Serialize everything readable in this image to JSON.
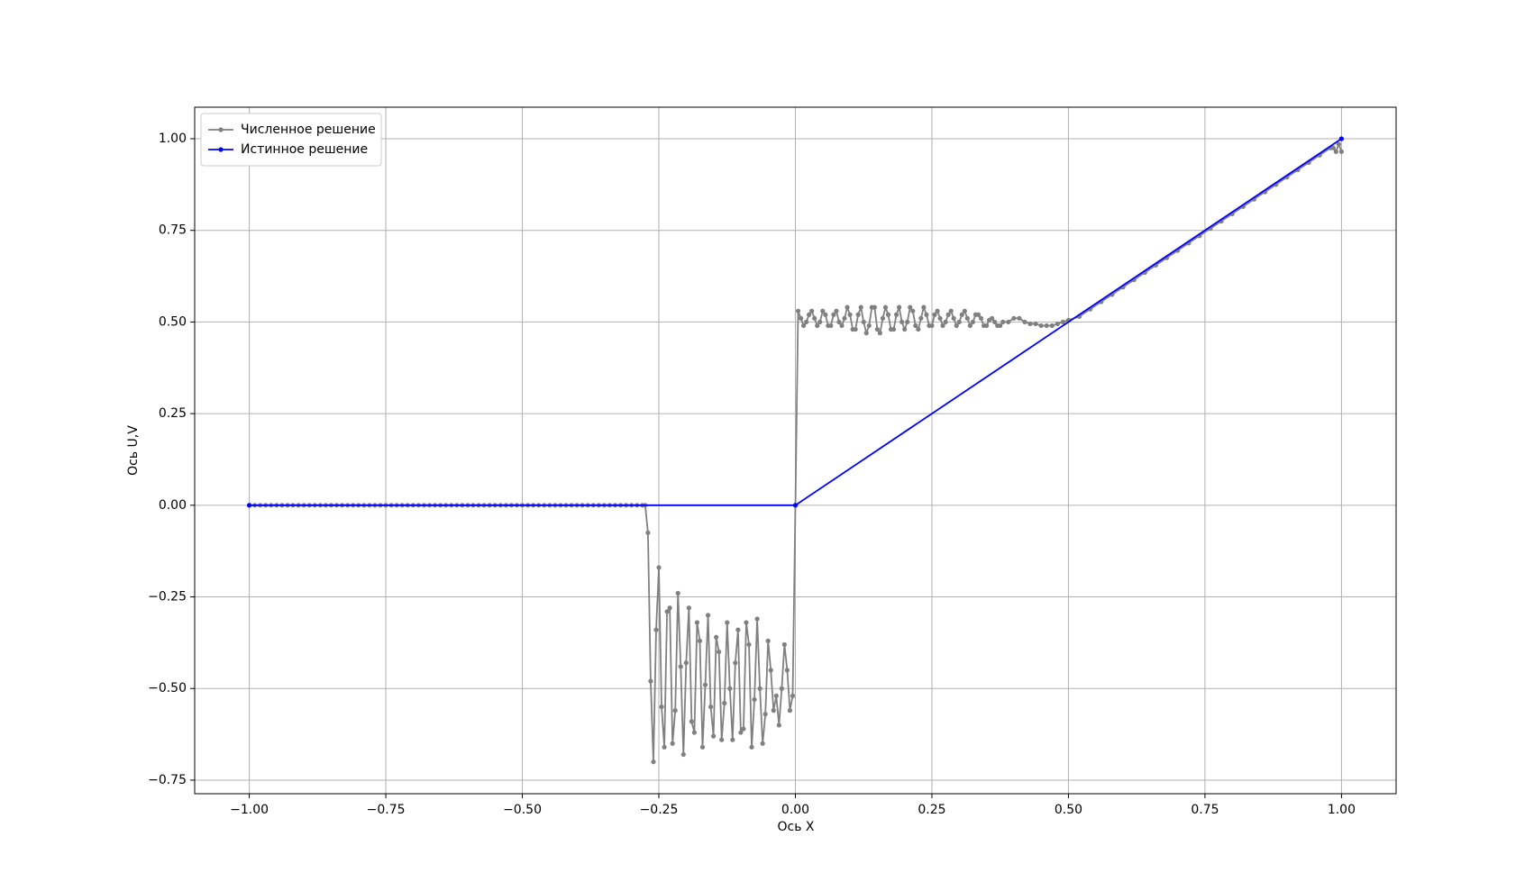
{
  "chart_data": {
    "type": "line",
    "xlabel": "Ось X",
    "ylabel": "Ось U,V",
    "xlim": [
      -1.1,
      1.1
    ],
    "ylim": [
      -0.787,
      1.086
    ],
    "xticks": [
      {
        "value": -1.0,
        "label": "−1.00"
      },
      {
        "value": -0.75,
        "label": "−0.75"
      },
      {
        "value": -0.5,
        "label": "−0.50"
      },
      {
        "value": -0.25,
        "label": "−0.25"
      },
      {
        "value": 0.0,
        "label": "0.00"
      },
      {
        "value": 0.25,
        "label": "0.25"
      },
      {
        "value": 0.5,
        "label": "0.50"
      },
      {
        "value": 0.75,
        "label": "0.75"
      },
      {
        "value": 1.0,
        "label": "1.00"
      }
    ],
    "yticks": [
      {
        "value": -0.75,
        "label": "−0.75"
      },
      {
        "value": -0.5,
        "label": "−0.50"
      },
      {
        "value": -0.25,
        "label": "−0.25"
      },
      {
        "value": 0.0,
        "label": "0.00"
      },
      {
        "value": 0.25,
        "label": "0.25"
      },
      {
        "value": 0.5,
        "label": "0.50"
      },
      {
        "value": 0.75,
        "label": "0.75"
      },
      {
        "value": 1.0,
        "label": "1.00"
      }
    ],
    "grid": true,
    "legend": "upper left",
    "series": [
      {
        "name": "Численное решение",
        "color": "#808080",
        "x": [
          -1.0,
          -0.99,
          -0.98,
          -0.97,
          -0.96,
          -0.95,
          -0.94,
          -0.93,
          -0.92,
          -0.91,
          -0.9,
          -0.89,
          -0.88,
          -0.87,
          -0.86,
          -0.85,
          -0.84,
          -0.83,
          -0.82,
          -0.81,
          -0.8,
          -0.79,
          -0.78,
          -0.77,
          -0.76,
          -0.75,
          -0.74,
          -0.73,
          -0.72,
          -0.71,
          -0.7,
          -0.69,
          -0.68,
          -0.67,
          -0.66,
          -0.65,
          -0.64,
          -0.63,
          -0.62,
          -0.61,
          -0.6,
          -0.59,
          -0.58,
          -0.57,
          -0.56,
          -0.55,
          -0.54,
          -0.53,
          -0.52,
          -0.51,
          -0.5,
          -0.49,
          -0.48,
          -0.47,
          -0.46,
          -0.45,
          -0.44,
          -0.43,
          -0.42,
          -0.41,
          -0.4,
          -0.39,
          -0.38,
          -0.37,
          -0.36,
          -0.35,
          -0.34,
          -0.33,
          -0.32,
          -0.31,
          -0.3,
          -0.29,
          -0.28,
          -0.275,
          -0.27,
          -0.265,
          -0.26,
          -0.255,
          -0.25,
          -0.245,
          -0.24,
          -0.235,
          -0.23,
          -0.225,
          -0.22,
          -0.215,
          -0.21,
          -0.205,
          -0.2,
          -0.195,
          -0.19,
          -0.185,
          -0.18,
          -0.175,
          -0.17,
          -0.165,
          -0.16,
          -0.155,
          -0.15,
          -0.145,
          -0.14,
          -0.135,
          -0.13,
          -0.125,
          -0.12,
          -0.115,
          -0.11,
          -0.105,
          -0.1,
          -0.095,
          -0.09,
          -0.085,
          -0.08,
          -0.075,
          -0.07,
          -0.065,
          -0.06,
          -0.055,
          -0.05,
          -0.045,
          -0.04,
          -0.035,
          -0.03,
          -0.025,
          -0.02,
          -0.015,
          -0.01,
          -0.005,
          0.0,
          0.005,
          0.01,
          0.015,
          0.02,
          0.025,
          0.03,
          0.035,
          0.04,
          0.045,
          0.05,
          0.055,
          0.06,
          0.065,
          0.07,
          0.075,
          0.08,
          0.085,
          0.09,
          0.095,
          0.1,
          0.105,
          0.11,
          0.115,
          0.12,
          0.125,
          0.13,
          0.135,
          0.14,
          0.145,
          0.15,
          0.155,
          0.16,
          0.165,
          0.17,
          0.175,
          0.18,
          0.185,
          0.19,
          0.195,
          0.2,
          0.205,
          0.21,
          0.215,
          0.22,
          0.225,
          0.23,
          0.235,
          0.24,
          0.245,
          0.25,
          0.255,
          0.26,
          0.265,
          0.27,
          0.275,
          0.28,
          0.285,
          0.29,
          0.295,
          0.3,
          0.305,
          0.31,
          0.315,
          0.32,
          0.325,
          0.33,
          0.335,
          0.34,
          0.345,
          0.35,
          0.355,
          0.36,
          0.365,
          0.37,
          0.375,
          0.38,
          0.39,
          0.4,
          0.41,
          0.42,
          0.43,
          0.44,
          0.45,
          0.46,
          0.47,
          0.48,
          0.49,
          0.5,
          0.52,
          0.54,
          0.56,
          0.58,
          0.6,
          0.62,
          0.64,
          0.66,
          0.68,
          0.7,
          0.72,
          0.74,
          0.76,
          0.78,
          0.8,
          0.82,
          0.84,
          0.86,
          0.88,
          0.9,
          0.92,
          0.94,
          0.96,
          0.98,
          0.985,
          0.99,
          0.995,
          1.0
        ],
        "values": [
          0,
          0,
          0,
          0,
          0,
          0,
          0,
          0,
          0,
          0,
          0,
          0,
          0,
          0,
          0,
          0,
          0,
          0,
          0,
          0,
          0,
          0,
          0,
          0,
          0,
          0,
          0,
          0,
          0,
          0,
          0,
          0,
          0,
          0,
          0,
          0,
          0,
          0,
          0,
          0,
          0,
          0,
          0,
          0,
          0,
          0,
          0,
          0,
          0,
          0,
          0,
          0,
          0,
          0,
          0,
          0,
          0,
          0,
          0,
          0,
          0,
          0,
          0,
          0,
          0,
          0,
          0,
          0,
          0,
          0,
          0,
          0,
          0,
          0,
          -0.075,
          -0.48,
          -0.7,
          -0.34,
          -0.17,
          -0.55,
          -0.66,
          -0.29,
          -0.28,
          -0.65,
          -0.56,
          -0.24,
          -0.44,
          -0.68,
          -0.43,
          -0.28,
          -0.59,
          -0.62,
          -0.32,
          -0.37,
          -0.66,
          -0.49,
          -0.3,
          -0.55,
          -0.63,
          -0.36,
          -0.4,
          -0.64,
          -0.54,
          -0.32,
          -0.5,
          -0.64,
          -0.43,
          -0.34,
          -0.62,
          -0.61,
          -0.32,
          -0.38,
          -0.66,
          -0.53,
          -0.31,
          -0.5,
          -0.65,
          -0.57,
          -0.37,
          -0.45,
          -0.56,
          -0.52,
          -0.6,
          -0.5,
          -0.38,
          -0.45,
          -0.56,
          -0.52,
          0,
          0.53,
          0.51,
          0.49,
          0.5,
          0.52,
          0.53,
          0.51,
          0.49,
          0.5,
          0.53,
          0.52,
          0.49,
          0.49,
          0.52,
          0.53,
          0.5,
          0.49,
          0.51,
          0.54,
          0.52,
          0.48,
          0.48,
          0.52,
          0.54,
          0.5,
          0.47,
          0.49,
          0.54,
          0.54,
          0.48,
          0.47,
          0.51,
          0.54,
          0.52,
          0.48,
          0.48,
          0.52,
          0.54,
          0.5,
          0.48,
          0.5,
          0.54,
          0.53,
          0.49,
          0.48,
          0.51,
          0.54,
          0.52,
          0.49,
          0.49,
          0.52,
          0.53,
          0.51,
          0.49,
          0.5,
          0.52,
          0.53,
          0.51,
          0.49,
          0.5,
          0.52,
          0.53,
          0.51,
          0.49,
          0.5,
          0.52,
          0.52,
          0.51,
          0.49,
          0.49,
          0.505,
          0.51,
          0.5,
          0.49,
          0.49,
          0.5,
          0.5,
          0.51,
          0.51,
          0.5,
          0.495,
          0.495,
          0.49,
          0.49,
          0.49,
          0.495,
          0.5,
          0.505,
          0.515,
          0.535,
          0.555,
          0.575,
          0.595,
          0.615,
          0.635,
          0.655,
          0.675,
          0.695,
          0.715,
          0.735,
          0.755,
          0.775,
          0.795,
          0.815,
          0.835,
          0.855,
          0.875,
          0.895,
          0.915,
          0.935,
          0.955,
          0.975,
          0.975,
          0.965,
          0.985,
          0.965
        ]
      },
      {
        "name": "Истинное решение",
        "color": "#0000ff",
        "x": [
          -1.0,
          0.0,
          1.0
        ],
        "values": [
          0,
          0,
          1
        ]
      }
    ]
  }
}
